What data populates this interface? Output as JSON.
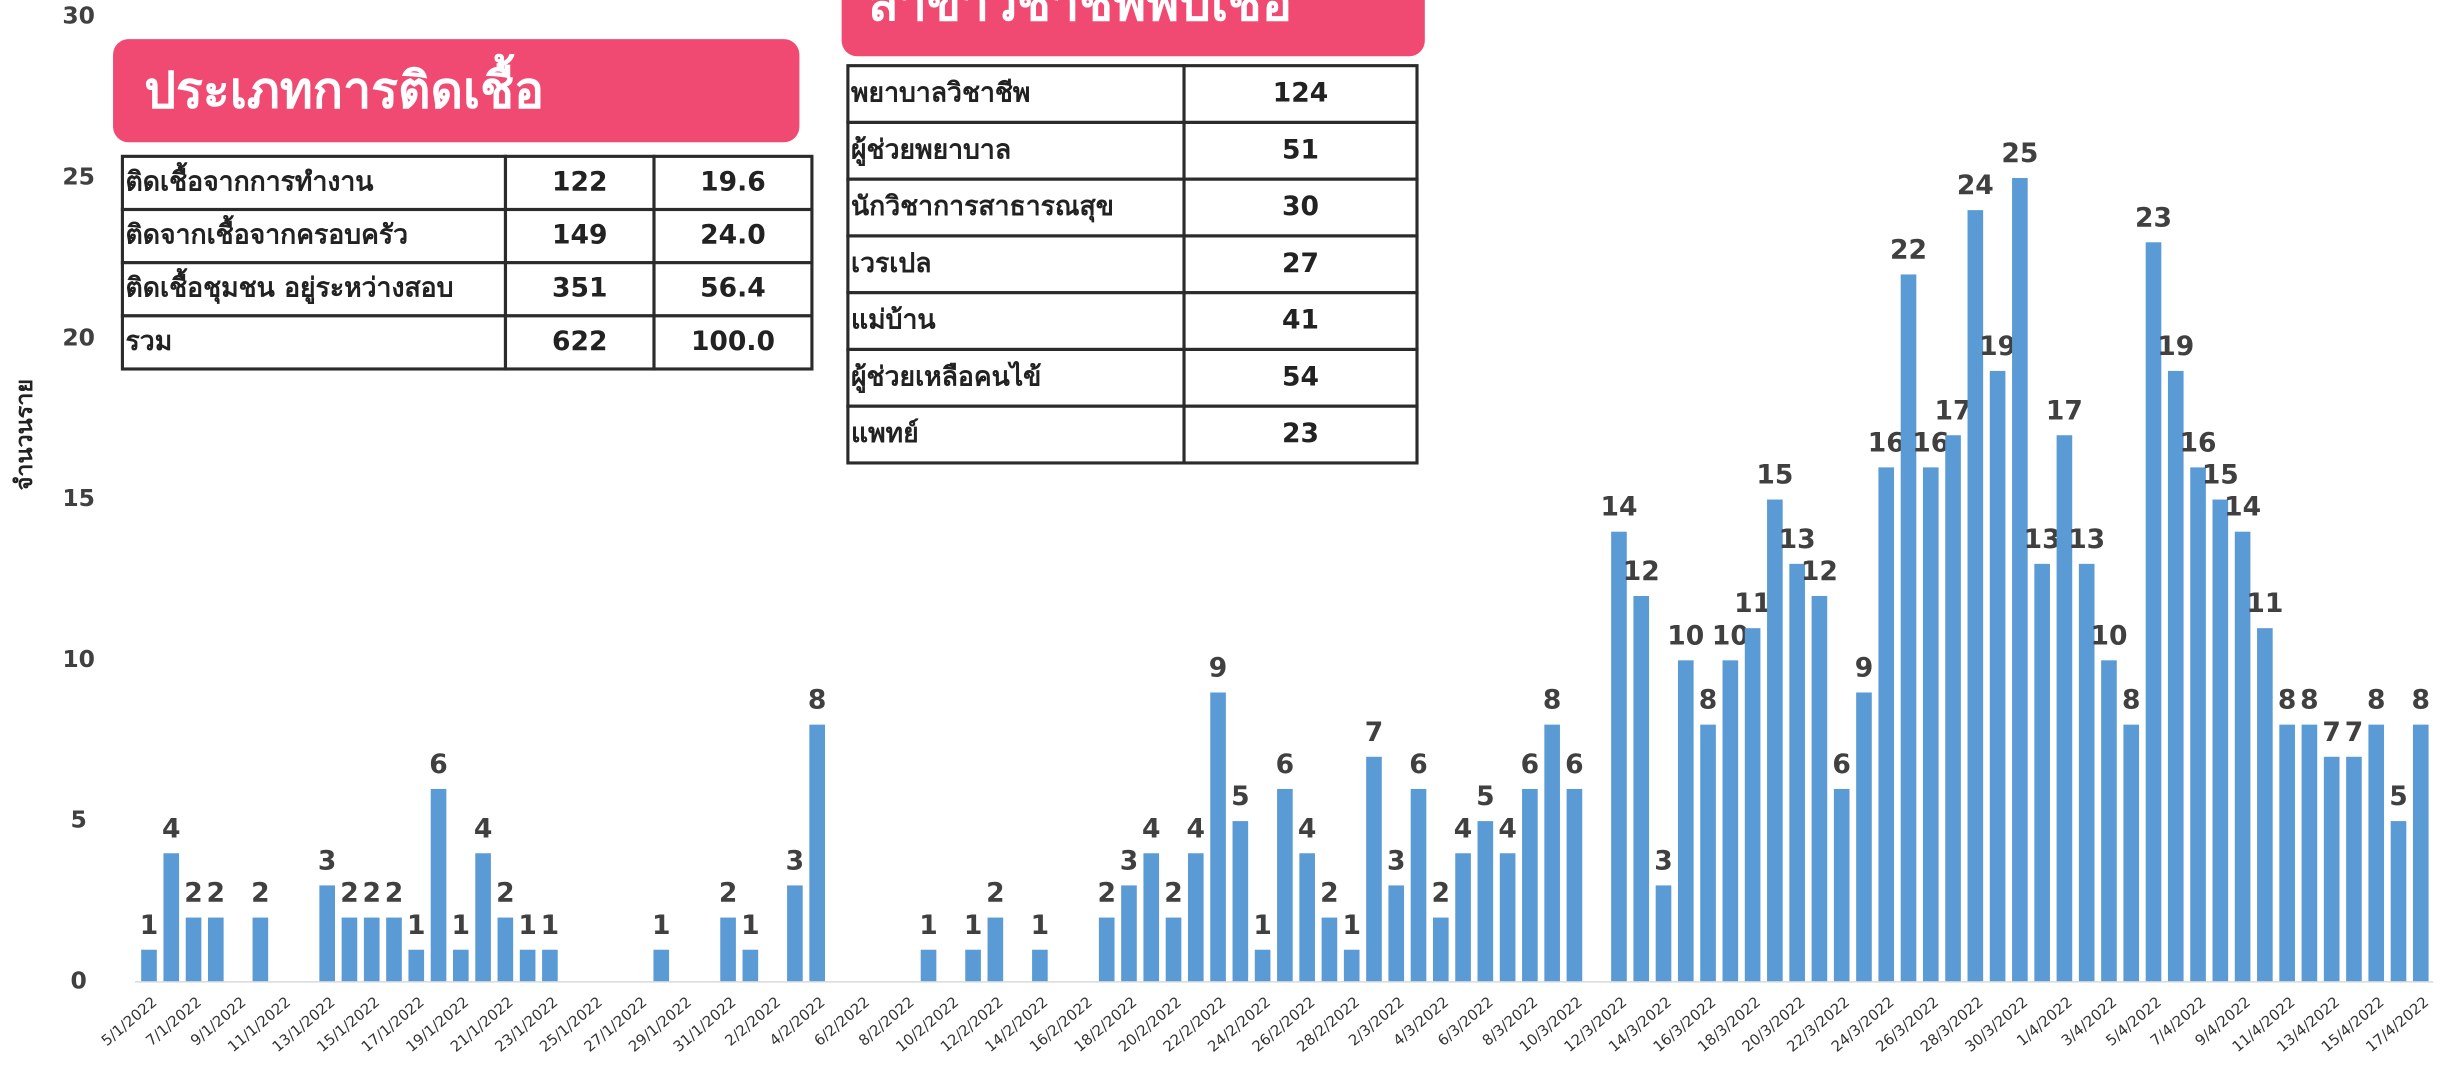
{
  "chart_data": {
    "type": "bar",
    "y_label": "จำนวนราย",
    "categories": [
      "5/1/2022",
      null,
      "7/1/2022",
      null,
      "9/1/2022",
      null,
      "11/1/2022",
      null,
      "13/1/2022",
      null,
      "15/1/2022",
      null,
      "17/1/2022",
      null,
      "19/1/2022",
      null,
      "21/1/2022",
      null,
      "23/1/2022",
      null,
      "25/1/2022",
      null,
      "27/1/2022",
      null,
      "29/1/2022",
      null,
      "31/1/2022",
      null,
      "2/2/2022",
      null,
      "4/2/2022",
      null,
      "6/2/2022",
      null,
      "8/2/2022",
      null,
      "10/2/2022",
      null,
      "12/2/2022",
      null,
      "14/2/2022",
      null,
      "16/2/2022",
      null,
      "18/2/2022",
      null,
      "20/2/2022",
      null,
      "22/2/2022",
      null,
      "24/2/2022",
      null,
      "26/2/2022",
      null,
      "28/2/2022",
      null,
      "2/3/2022",
      null,
      "4/3/2022",
      null,
      "6/3/2022",
      null,
      "8/3/2022",
      null,
      "10/3/2022",
      null,
      "12/3/2022",
      null,
      "14/3/2022",
      null,
      "16/3/2022",
      null,
      "18/3/2022",
      null,
      "20/3/2022",
      null,
      "22/3/2022",
      null,
      "24/3/2022",
      null,
      "26/3/2022",
      null,
      "28/3/2022",
      null,
      "30/3/2022",
      null,
      "1/4/2022",
      null,
      "3/4/2022",
      null,
      "5/4/2022",
      null,
      "7/4/2022",
      null,
      "9/4/2022",
      null,
      "11/4/2022",
      null,
      "13/4/2022",
      null,
      "15/4/2022",
      null,
      "17/4/2022"
    ],
    "values": [
      1,
      4,
      2,
      2,
      0,
      2,
      0,
      0,
      3,
      2,
      2,
      2,
      1,
      6,
      1,
      4,
      2,
      1,
      1,
      0,
      0,
      0,
      0,
      1,
      0,
      0,
      2,
      1,
      0,
      3,
      8,
      0,
      0,
      0,
      0,
      1,
      0,
      1,
      2,
      0,
      1,
      0,
      0,
      2,
      3,
      4,
      2,
      4,
      9,
      5,
      1,
      6,
      4,
      2,
      1,
      7,
      3,
      6,
      2,
      4,
      5,
      4,
      6,
      8,
      6,
      0,
      14,
      12,
      3,
      10,
      8,
      10,
      11,
      15,
      13,
      12,
      6,
      9,
      16,
      22,
      16,
      17,
      24,
      19,
      25,
      13,
      17,
      13,
      10,
      8,
      23,
      19,
      16,
      15,
      14,
      11,
      8,
      8,
      7,
      7,
      8,
      5,
      8
    ],
    "color": "#5b9bd5",
    "ylim": [
      0,
      30
    ],
    "yticks": [
      0,
      5,
      10,
      15,
      20,
      25,
      30
    ]
  },
  "tables": {
    "infection_types": {
      "title": "ประเภทการติดเชื้อ",
      "rows": [
        [
          "ติดเชื้อจากการทำงาน",
          "122",
          "19.6"
        ],
        [
          "ติดจากเชื้อจากครอบครัว",
          "149",
          "24.0"
        ],
        [
          "ติดเชื้อชุมชน อยู่ระหว่างสอบ",
          "351",
          "56.4"
        ],
        [
          "รวม",
          "622",
          "100.0"
        ]
      ]
    },
    "professions": {
      "title": "สาขาวิชาชีพพบเชื้อ",
      "rows": [
        [
          "พยาบาลวิชาชีพ",
          "124"
        ],
        [
          "ผู้ช่วยพยาบาล",
          "51"
        ],
        [
          "นักวิชาการสาธารณสุข",
          "30"
        ],
        [
          "เวรเปล",
          "27"
        ],
        [
          "แม่บ้าน",
          "41"
        ],
        [
          "ผู้ช่วยเหลือคนไข้",
          "54"
        ],
        [
          "แพทย์",
          "23"
        ]
      ]
    }
  }
}
